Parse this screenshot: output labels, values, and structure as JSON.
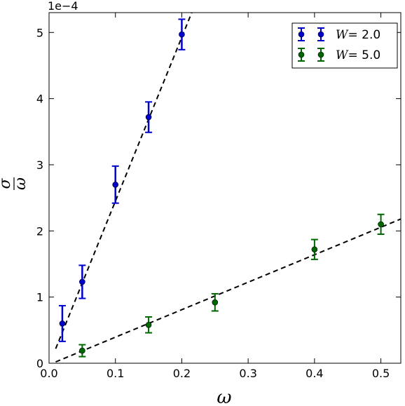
{
  "chart_data": {
    "type": "scatter",
    "xlabel": "ω",
    "ylabel_num": "σ",
    "ylabel_den": "ω",
    "offset_label": "1e−4",
    "xlim": [
      0.0,
      0.53
    ],
    "ylim": [
      0.0,
      5.3
    ],
    "x_ticks": [
      "0.0",
      "0.1",
      "0.2",
      "0.3",
      "0.4",
      "0.5"
    ],
    "y_ticks": [
      "0",
      "1",
      "2",
      "3",
      "4",
      "5"
    ],
    "legend_position": "top-right",
    "series": [
      {
        "name_prefix": "W",
        "name_value": "= 2.0",
        "color": "#0000cc",
        "x": [
          0.02,
          0.05,
          0.1,
          0.15,
          0.2
        ],
        "y": [
          0.6,
          1.23,
          2.7,
          3.72,
          4.97
        ],
        "err": [
          0.27,
          0.25,
          0.28,
          0.23,
          0.23
        ],
        "fit": {
          "x": [
            0.01,
            0.215
          ],
          "y": [
            0.22,
            5.3
          ]
        }
      },
      {
        "name_prefix": "W",
        "name_value": "= 5.0",
        "color": "#006600",
        "x": [
          0.05,
          0.15,
          0.25,
          0.4,
          0.5
        ],
        "y": [
          0.19,
          0.58,
          0.92,
          1.72,
          2.1
        ],
        "err": [
          0.09,
          0.12,
          0.13,
          0.15,
          0.15
        ],
        "fit": {
          "x": [
            0.01,
            0.53
          ],
          "y": [
            0.02,
            2.18
          ]
        }
      }
    ]
  }
}
